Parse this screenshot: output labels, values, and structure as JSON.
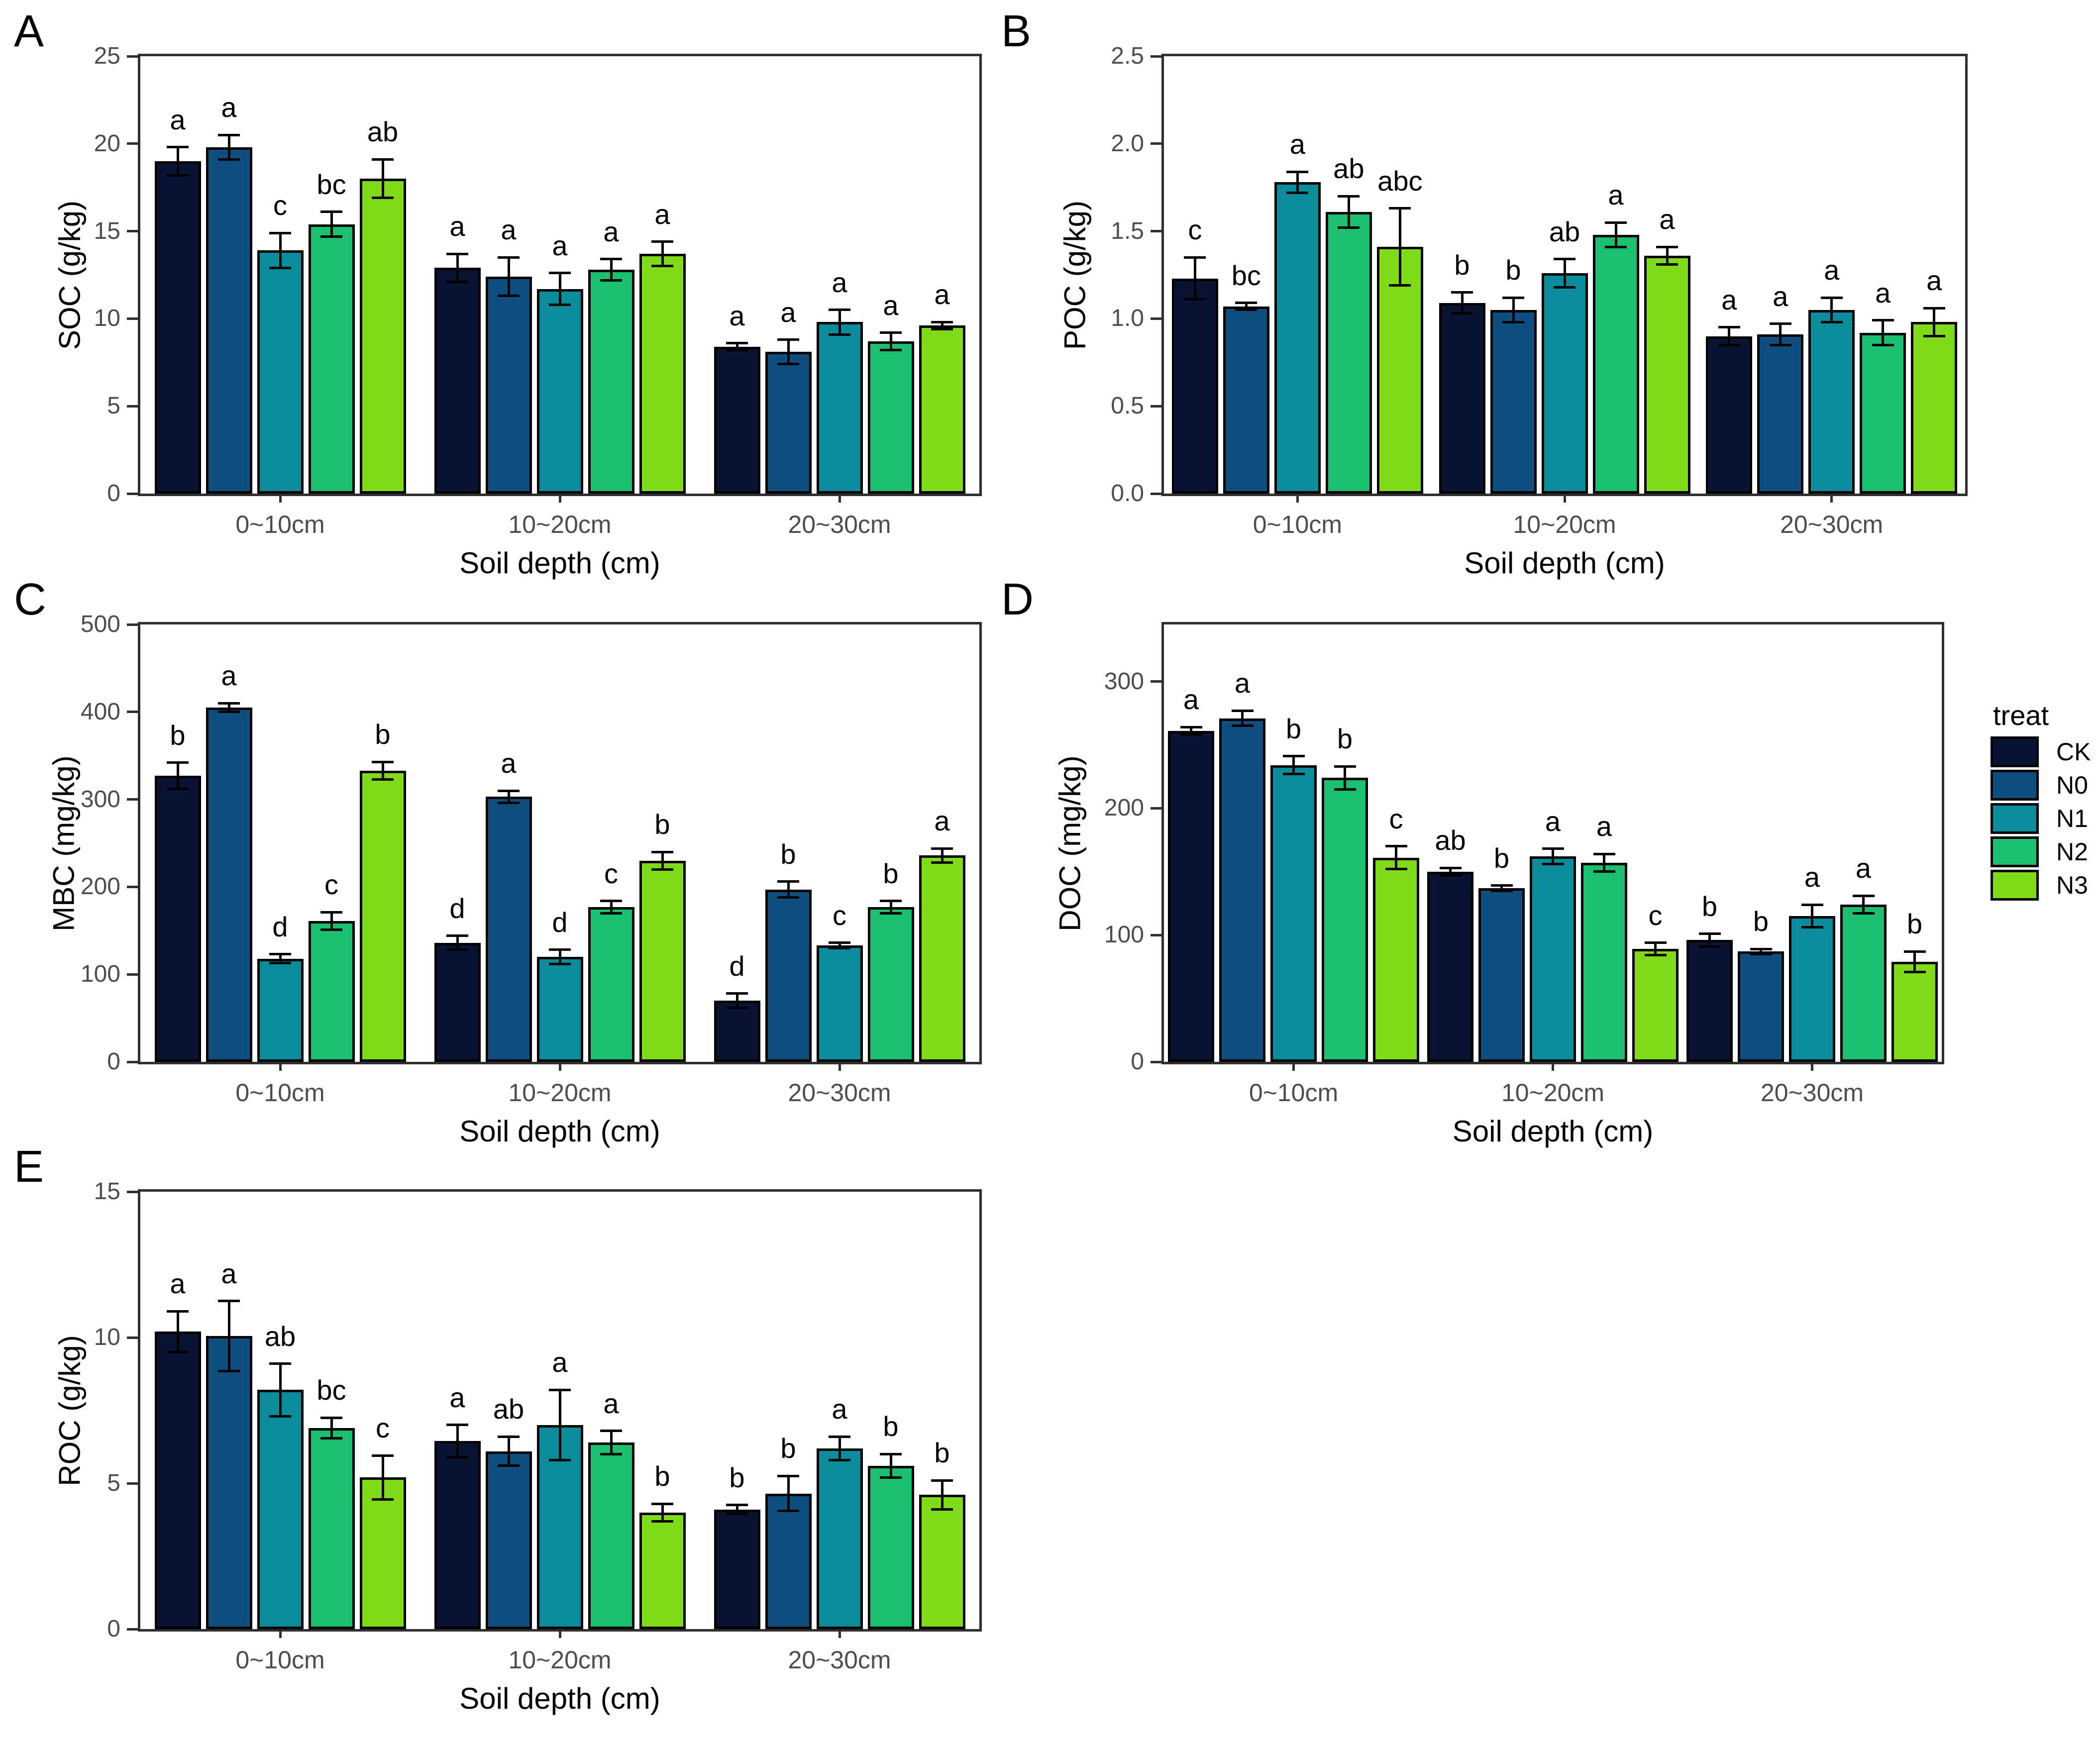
{
  "legend": {
    "title": "treat",
    "entries": [
      {
        "label": "CK",
        "color": "#0b1334"
      },
      {
        "label": "N0",
        "color": "#0f4f80"
      },
      {
        "label": "N1",
        "color": "#0a8c9c"
      },
      {
        "label": "N2",
        "color": "#1cbf70"
      },
      {
        "label": "N3",
        "color": "#80db18"
      }
    ]
  },
  "colors": {
    "bar_border": "#000000",
    "axis": "#2f2f2f",
    "tick_label": "#4d4d4d",
    "error_bar": "#000000"
  },
  "chart_data": [
    {
      "id": "A",
      "type": "bar",
      "ylabel": "SOC (g/kg)",
      "xlabel": "Soil depth (cm)",
      "ylim": [
        0,
        25
      ],
      "ytick_values": [
        0,
        5,
        10,
        15,
        20,
        25
      ],
      "yticks": [
        "0",
        "5",
        "10",
        "15",
        "20",
        "25"
      ],
      "categories": [
        "0~10cm",
        "10~20cm",
        "20~30cm"
      ],
      "legend_position": "none",
      "grid": false,
      "series": [
        {
          "name": "CK",
          "color": "#0b1334",
          "values": [
            19.0,
            12.9,
            8.4
          ],
          "errors": [
            0.8,
            0.8,
            0.2
          ],
          "letters": [
            "a",
            "a",
            "a"
          ]
        },
        {
          "name": "N0",
          "color": "#0f4f80",
          "values": [
            19.8,
            12.4,
            8.1
          ],
          "errors": [
            0.7,
            1.1,
            0.7
          ],
          "letters": [
            "a",
            "a",
            "a"
          ]
        },
        {
          "name": "N1",
          "color": "#0a8c9c",
          "values": [
            13.9,
            11.7,
            9.8
          ],
          "errors": [
            1.0,
            0.9,
            0.7
          ],
          "letters": [
            "c",
            "a",
            "a"
          ]
        },
        {
          "name": "N2",
          "color": "#1cbf70",
          "values": [
            15.4,
            12.8,
            8.7
          ],
          "errors": [
            0.7,
            0.6,
            0.5
          ],
          "letters": [
            "bc",
            "a",
            "a"
          ]
        },
        {
          "name": "N3",
          "color": "#80db18",
          "values": [
            18.0,
            13.7,
            9.6
          ],
          "errors": [
            1.1,
            0.7,
            0.2
          ],
          "letters": [
            "ab",
            "a",
            "a"
          ]
        }
      ]
    },
    {
      "id": "B",
      "type": "bar",
      "ylabel": "POC (g/kg)",
      "xlabel": "Soil depth (cm)",
      "ylim": [
        0,
        2.5
      ],
      "ytick_values": [
        0,
        0.5,
        1.0,
        1.5,
        2.0,
        2.5
      ],
      "yticks": [
        "0.0",
        "0.5",
        "1.0",
        "1.5",
        "2.0",
        "2.5"
      ],
      "categories": [
        "0~10cm",
        "10~20cm",
        "20~30cm"
      ],
      "legend_position": "none",
      "grid": false,
      "series": [
        {
          "name": "CK",
          "color": "#0b1334",
          "values": [
            1.23,
            1.09,
            0.9
          ],
          "errors": [
            0.12,
            0.06,
            0.05
          ],
          "letters": [
            "c",
            "b",
            "a"
          ]
        },
        {
          "name": "N0",
          "color": "#0f4f80",
          "values": [
            1.07,
            1.05,
            0.91
          ],
          "errors": [
            0.02,
            0.07,
            0.06
          ],
          "letters": [
            "bc",
            "b",
            "a"
          ]
        },
        {
          "name": "N1",
          "color": "#0a8c9c",
          "values": [
            1.78,
            1.26,
            1.05
          ],
          "errors": [
            0.06,
            0.08,
            0.07
          ],
          "letters": [
            "a",
            "ab",
            "a"
          ]
        },
        {
          "name": "N2",
          "color": "#1cbf70",
          "values": [
            1.61,
            1.48,
            0.92
          ],
          "errors": [
            0.09,
            0.07,
            0.07
          ],
          "letters": [
            "ab",
            "a",
            "a"
          ]
        },
        {
          "name": "N3",
          "color": "#80db18",
          "values": [
            1.41,
            1.36,
            0.98
          ],
          "errors": [
            0.22,
            0.05,
            0.08
          ],
          "letters": [
            "abc",
            "a",
            "a"
          ]
        }
      ]
    },
    {
      "id": "C",
      "type": "bar",
      "ylabel": "MBC (mg/kg)",
      "xlabel": "Soil depth (cm)",
      "ylim": [
        0,
        500
      ],
      "ytick_values": [
        0,
        100,
        200,
        300,
        400,
        500
      ],
      "yticks": [
        "0",
        "100",
        "200",
        "300",
        "400",
        "500"
      ],
      "categories": [
        "0~10cm",
        "10~20cm",
        "20~30cm"
      ],
      "legend_position": "none",
      "grid": false,
      "series": [
        {
          "name": "CK",
          "color": "#0b1334",
          "values": [
            327,
            136,
            70
          ],
          "errors": [
            15,
            8,
            8
          ],
          "letters": [
            "b",
            "d",
            "d"
          ]
        },
        {
          "name": "N0",
          "color": "#0f4f80",
          "values": [
            405,
            303,
            197
          ],
          "errors": [
            5,
            7,
            9
          ],
          "letters": [
            "a",
            "a",
            "b"
          ]
        },
        {
          "name": "N1",
          "color": "#0a8c9c",
          "values": [
            118,
            120,
            133
          ],
          "errors": [
            5,
            8,
            3
          ],
          "letters": [
            "d",
            "d",
            "c"
          ]
        },
        {
          "name": "N2",
          "color": "#1cbf70",
          "values": [
            161,
            177,
            177
          ],
          "errors": [
            10,
            7,
            7
          ],
          "letters": [
            "c",
            "c",
            "b"
          ]
        },
        {
          "name": "N3",
          "color": "#80db18",
          "values": [
            333,
            230,
            236
          ],
          "errors": [
            10,
            10,
            8
          ],
          "letters": [
            "b",
            "b",
            "a"
          ]
        }
      ]
    },
    {
      "id": "D",
      "type": "bar",
      "ylabel": "DOC (mg/kg)",
      "xlabel": "Soil depth (cm)",
      "ylim": [
        0,
        345
      ],
      "ytick_values": [
        0,
        100,
        200,
        300
      ],
      "yticks": [
        "0",
        "100",
        "200",
        "300"
      ],
      "categories": [
        "0~10cm",
        "10~20cm",
        "20~30cm"
      ],
      "legend_position": "right",
      "grid": false,
      "series": [
        {
          "name": "CK",
          "color": "#0b1334",
          "values": [
            261,
            150,
            96
          ],
          "errors": [
            3,
            3,
            5
          ],
          "letters": [
            "a",
            "ab",
            "b"
          ]
        },
        {
          "name": "N0",
          "color": "#0f4f80",
          "values": [
            271,
            137,
            87
          ],
          "errors": [
            6,
            2,
            2
          ],
          "letters": [
            "a",
            "b",
            "b"
          ]
        },
        {
          "name": "N1",
          "color": "#0a8c9c",
          "values": [
            234,
            162,
            115
          ],
          "errors": [
            7,
            6,
            9
          ],
          "letters": [
            "b",
            "a",
            "a"
          ]
        },
        {
          "name": "N2",
          "color": "#1cbf70",
          "values": [
            224,
            157,
            124
          ],
          "errors": [
            9,
            7,
            7
          ],
          "letters": [
            "b",
            "a",
            "a"
          ]
        },
        {
          "name": "N3",
          "color": "#80db18",
          "values": [
            161,
            89,
            79
          ],
          "errors": [
            9,
            5,
            8
          ],
          "letters": [
            "c",
            "c",
            "b"
          ]
        }
      ]
    },
    {
      "id": "E",
      "type": "bar",
      "ylabel": "ROC (g/kg)",
      "xlabel": "Soil depth (cm)",
      "ylim": [
        0,
        15
      ],
      "ytick_values": [
        0,
        5,
        10,
        15
      ],
      "yticks": [
        "0",
        "5",
        "10",
        "15"
      ],
      "categories": [
        "0~10cm",
        "10~20cm",
        "20~30cm"
      ],
      "legend_position": "none",
      "grid": false,
      "series": [
        {
          "name": "CK",
          "color": "#0b1334",
          "values": [
            10.2,
            6.45,
            4.1
          ],
          "errors": [
            0.7,
            0.55,
            0.15
          ],
          "letters": [
            "a",
            "a",
            "b"
          ]
        },
        {
          "name": "N0",
          "color": "#0f4f80",
          "values": [
            10.05,
            6.1,
            4.65
          ],
          "errors": [
            1.2,
            0.5,
            0.6
          ],
          "letters": [
            "a",
            "ab",
            "b"
          ]
        },
        {
          "name": "N1",
          "color": "#0a8c9c",
          "values": [
            8.2,
            7.0,
            6.2
          ],
          "errors": [
            0.9,
            1.2,
            0.4
          ],
          "letters": [
            "ab",
            "a",
            "a"
          ]
        },
        {
          "name": "N2",
          "color": "#1cbf70",
          "values": [
            6.9,
            6.4,
            5.6
          ],
          "errors": [
            0.35,
            0.4,
            0.4
          ],
          "letters": [
            "bc",
            "a",
            "b"
          ]
        },
        {
          "name": "N3",
          "color": "#80db18",
          "values": [
            5.2,
            4.0,
            4.6
          ],
          "errors": [
            0.75,
            0.3,
            0.5
          ],
          "letters": [
            "c",
            "b",
            "b"
          ]
        }
      ]
    }
  ]
}
